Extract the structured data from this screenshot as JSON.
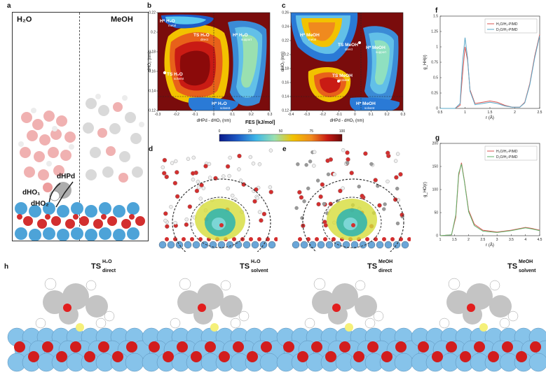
{
  "panels": {
    "a": {
      "letter": "a",
      "left_title": "H₂O",
      "right_title": "MeOH",
      "labels": [
        "dHPd",
        "dHO₁",
        "dHO₂"
      ]
    },
    "b": {
      "letter": "b",
      "ylabel": "dHO₂ (nm)",
      "xlabel": "dHPd - dHO₁ (nm)",
      "xticks": [
        "-0.3",
        "-0.2",
        "-0.1",
        "0",
        "0.1",
        "0.2",
        "0.3"
      ],
      "yticks": [
        "0.22",
        "0.2",
        "0.18",
        "0.16",
        "0.14",
        "0.12"
      ],
      "annotations": [
        {
          "main": "H* H₂O",
          "sub": "metal"
        },
        {
          "main": "TS H₂O",
          "sub": "direct"
        },
        {
          "main": "H* H₂O",
          "sub": "support"
        },
        {
          "main": "TS H₂O",
          "sub": "solvent"
        },
        {
          "main": "H* H₂O",
          "sub": "solvent"
        }
      ]
    },
    "c": {
      "letter": "c",
      "ylabel": "dHO₂ (nm)",
      "xlabel": "dHPd - dHO₁ (nm)",
      "xticks": [
        "-0.4",
        "-0.3",
        "-0.2",
        "-0.1",
        "0",
        "0.1",
        "0.2",
        "0.3"
      ],
      "yticks": [
        "0.26",
        "0.24",
        "0.22",
        "0.2",
        "0.18",
        "0.16",
        "0.14",
        "0.12"
      ],
      "annotations": [
        {
          "main": "H* MeOH",
          "sub": "metal"
        },
        {
          "main": "TS MeOH",
          "sub": "direct"
        },
        {
          "main": "H* MeOH",
          "sub": "support"
        },
        {
          "main": "TS MeOH",
          "sub": "solvent"
        },
        {
          "main": "H* MeOH",
          "sub": "solvent"
        }
      ]
    },
    "colorbar": {
      "label": "FES [kJ/mol]",
      "ticks": [
        "0",
        "25",
        "50",
        "75",
        "100"
      ]
    },
    "d": {
      "letter": "d"
    },
    "e": {
      "letter": "e"
    },
    "h": {
      "letter": "h",
      "titles": [
        {
          "main": "TS",
          "sup": "H₂O",
          "sub": "direct"
        },
        {
          "main": "TS",
          "sup": "H₂O",
          "sub": "solvent"
        },
        {
          "main": "TS",
          "sup": "MeOH",
          "sub": "direct"
        },
        {
          "main": "TS",
          "sup": "MeOH",
          "sub": "solvent"
        }
      ]
    }
  },
  "chart_data": [
    {
      "type": "line",
      "panel": "f",
      "ylabel": "g_HH(r)",
      "xlabel": "r (Å)",
      "xlim": [
        0.5,
        2.5
      ],
      "ylim": [
        0,
        1.5
      ],
      "xticks": [
        "0.5",
        "1",
        "1.5",
        "2",
        "2.5"
      ],
      "yticks": [
        "0",
        "0.25",
        "0.5",
        "0.75",
        "1",
        "1.25",
        "1.5"
      ],
      "legend_position": "top-right",
      "series": [
        {
          "name": "H₂O/H₂-PIMD",
          "color": "#d9534f",
          "x": [
            0.5,
            0.8,
            0.9,
            0.95,
            1.0,
            1.05,
            1.1,
            1.2,
            1.35,
            1.5,
            1.65,
            1.8,
            1.95,
            2.1,
            2.2,
            2.3,
            2.4,
            2.5
          ],
          "y": [
            0,
            0,
            0.05,
            0.55,
            1.0,
            0.78,
            0.3,
            0.08,
            0.1,
            0.12,
            0.1,
            0.05,
            0.02,
            0.02,
            0.1,
            0.4,
            0.85,
            1.2
          ]
        },
        {
          "name": "D₂O/H₂-PIMD",
          "color": "#5aa8c8",
          "x": [
            0.5,
            0.8,
            0.9,
            0.95,
            1.0,
            1.05,
            1.1,
            1.2,
            1.35,
            1.5,
            1.65,
            1.8,
            1.95,
            2.1,
            2.2,
            2.3,
            2.4,
            2.5
          ],
          "y": [
            0,
            0,
            0.08,
            0.75,
            1.15,
            0.82,
            0.28,
            0.06,
            0.08,
            0.1,
            0.08,
            0.04,
            0.02,
            0.02,
            0.09,
            0.38,
            0.82,
            1.18
          ]
        }
      ]
    },
    {
      "type": "line",
      "panel": "g",
      "ylabel": "g_HO(r)",
      "xlabel": "r (Å)",
      "xlim": [
        1,
        4.5
      ],
      "ylim": [
        0,
        200
      ],
      "xticks": [
        "1",
        "1.5",
        "2",
        "2.5",
        "3",
        "3.5",
        "4",
        "4.5"
      ],
      "yticks": [
        "0",
        "50",
        "100",
        "150",
        "200"
      ],
      "legend_position": "top-right",
      "series": [
        {
          "name": "H₂O/H₂-PIMD",
          "color": "#d9534f",
          "x": [
            1,
            1.4,
            1.55,
            1.65,
            1.75,
            1.85,
            2.0,
            2.2,
            2.5,
            3.0,
            3.5,
            4.0,
            4.2,
            4.5
          ],
          "y": [
            0,
            2,
            40,
            130,
            158,
            120,
            55,
            25,
            12,
            8,
            12,
            18,
            16,
            12
          ]
        },
        {
          "name": "D₂O/H₂-PIMD",
          "color": "#5fb36a",
          "x": [
            1,
            1.4,
            1.55,
            1.65,
            1.75,
            1.85,
            2.0,
            2.2,
            2.5,
            3.0,
            3.5,
            4.0,
            4.2,
            4.5
          ],
          "y": [
            0,
            2,
            45,
            135,
            155,
            118,
            52,
            22,
            10,
            7,
            11,
            17,
            15,
            11
          ]
        }
      ]
    }
  ]
}
